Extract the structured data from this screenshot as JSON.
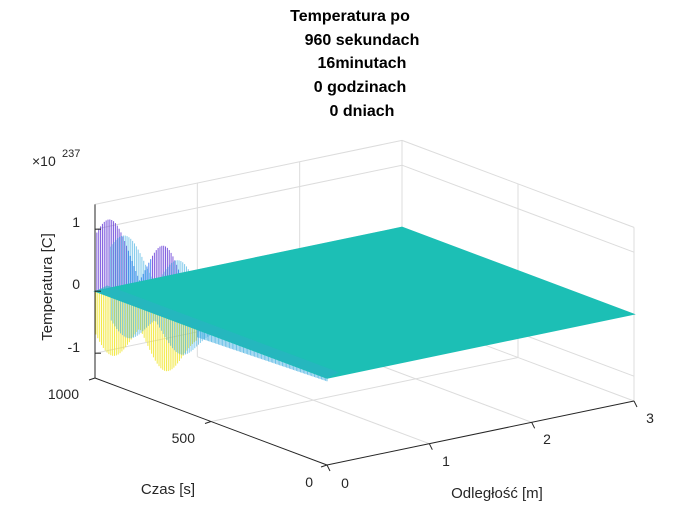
{
  "chart_data": {
    "type": "surface",
    "title": [
      "Temperatura po",
      "960 sekundach",
      "16minutach",
      "0 godzinach",
      "0 dniach"
    ],
    "xlabel": "Odległość [m]",
    "ylabel": "Czas [s]",
    "zlabel": "Temperatura [C]",
    "xlim": [
      0,
      3
    ],
    "ylim": [
      0,
      1000
    ],
    "zlim": [
      -1.4,
      1.4
    ],
    "z_exponent_label": "×10",
    "z_exponent_power": "237",
    "x_ticks": [
      "0",
      "1",
      "2",
      "3"
    ],
    "y_ticks": [
      "0",
      "500",
      "1000"
    ],
    "z_ticks": [
      "-1",
      "0",
      "1"
    ],
    "grid": true,
    "colormap": "parula",
    "surface_color": "#1cbfb5",
    "oscillation_colors": [
      "#6a3fd8",
      "#2f6ff0",
      "#2fa6de",
      "#f0e52a"
    ],
    "description_values": {
      "surface_level": 0,
      "oscillation_peak_time_s": [
        700,
        930
      ],
      "oscillation_peak_value": 1.25,
      "oscillation_trough_value": -0.9,
      "oscillation_region_x_m": [
        0,
        0.15
      ]
    }
  }
}
